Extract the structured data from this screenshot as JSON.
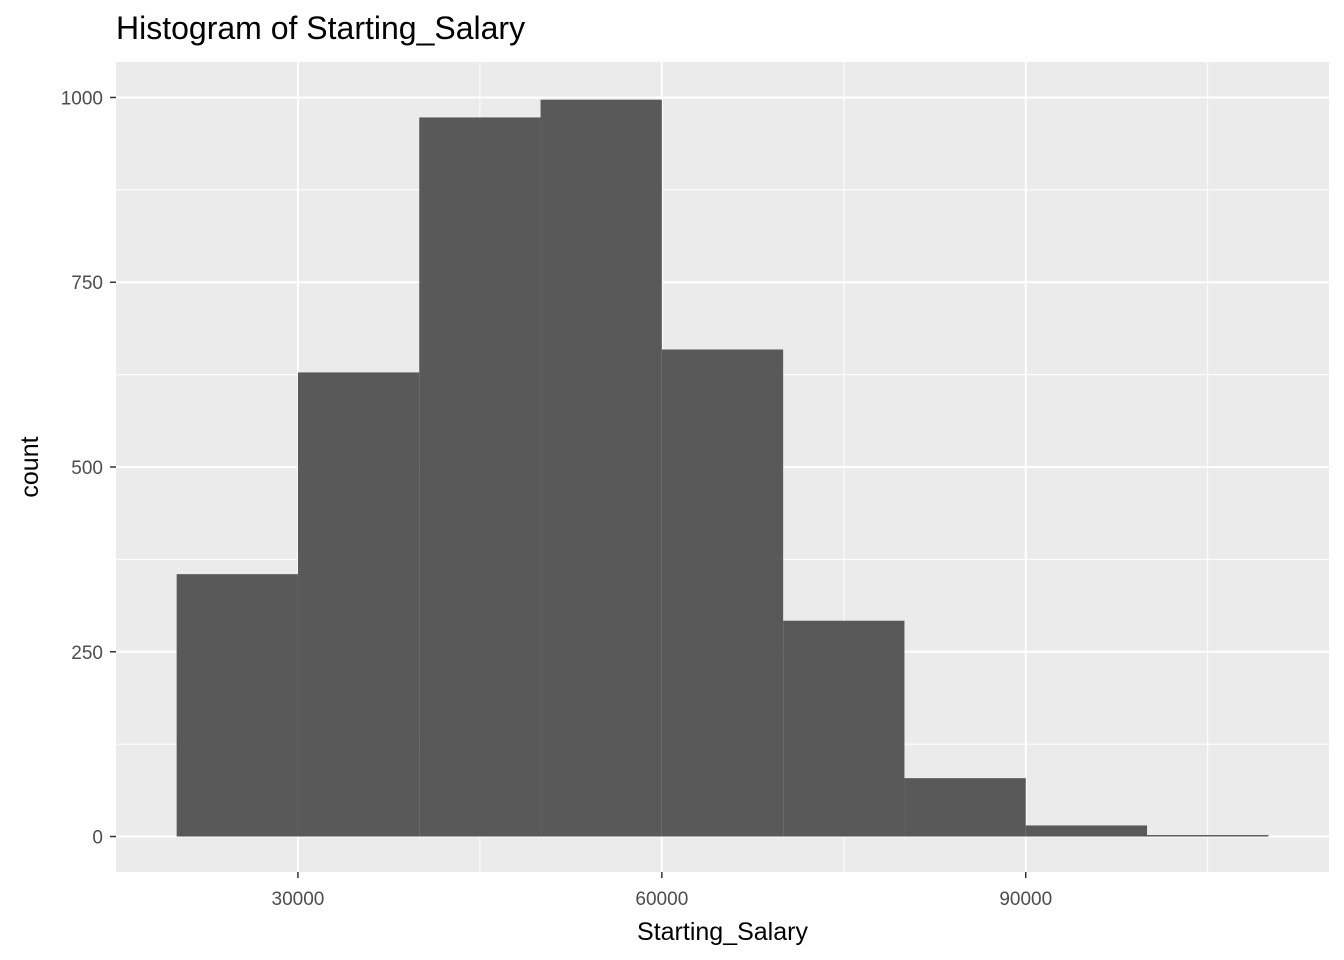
{
  "chart_data": {
    "type": "bar",
    "title": "Histogram of Starting_Salary",
    "xlabel": "Starting_Salary",
    "ylabel": "count",
    "bins": [
      {
        "x0": 20000,
        "x1": 30000,
        "count": 355
      },
      {
        "x0": 30000,
        "x1": 40000,
        "count": 628
      },
      {
        "x0": 40000,
        "x1": 50000,
        "count": 973
      },
      {
        "x0": 50000,
        "x1": 60000,
        "count": 997
      },
      {
        "x0": 60000,
        "x1": 70000,
        "count": 659
      },
      {
        "x0": 70000,
        "x1": 80000,
        "count": 292
      },
      {
        "x0": 80000,
        "x1": 90000,
        "count": 79
      },
      {
        "x0": 90000,
        "x1": 100000,
        "count": 15
      },
      {
        "x0": 100000,
        "x1": 110000,
        "count": 2
      }
    ],
    "xlim": [
      15000,
      115000
    ],
    "ylim": [
      -48,
      1048
    ],
    "x_ticks": [
      30000,
      60000,
      90000
    ],
    "x_tick_labels": [
      "30000",
      "60000",
      "90000"
    ],
    "y_ticks": [
      0,
      250,
      500,
      750,
      1000
    ],
    "y_tick_labels": [
      "0",
      "250",
      "500",
      "750",
      "1000"
    ],
    "grid": true,
    "colors": {
      "panel_background": "#ebebeb",
      "grid_major": "#ffffff",
      "bar_fill": "#595959",
      "tick_text": "#4d4d4d"
    }
  }
}
